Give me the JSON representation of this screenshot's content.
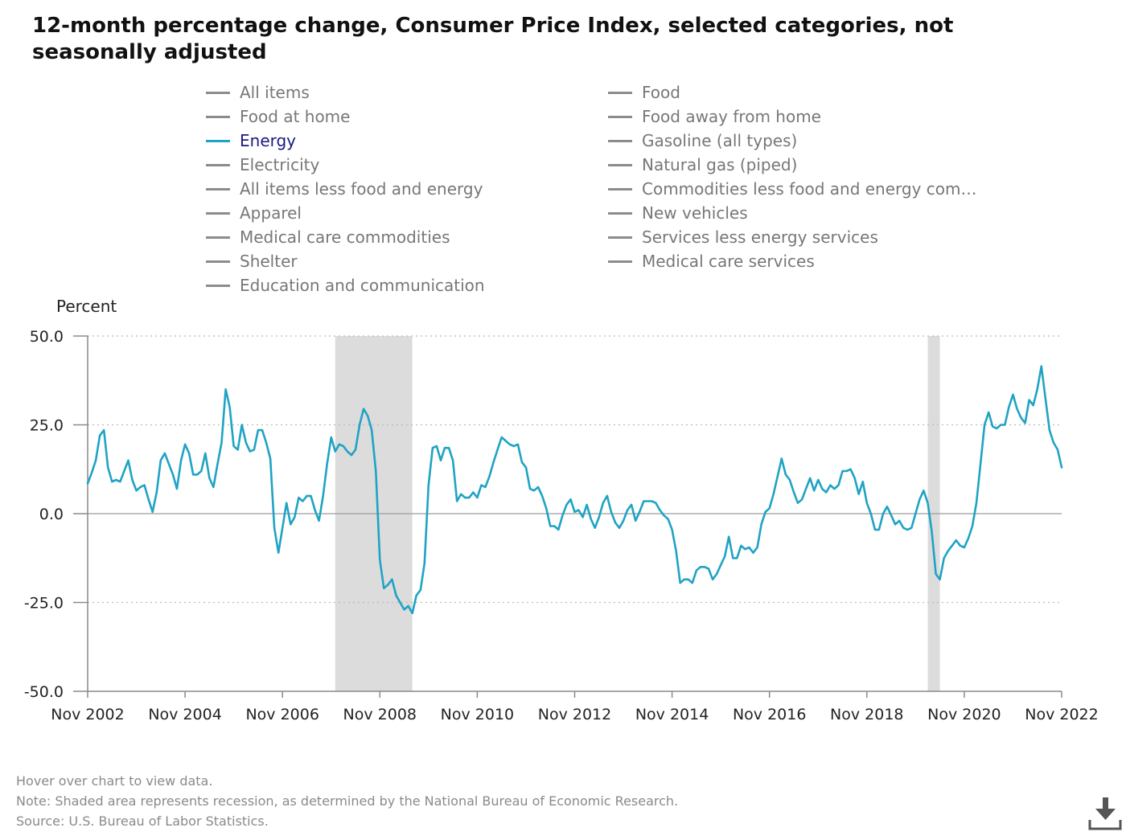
{
  "title": "12-month percentage change, Consumer Price Index, selected categories, not seasonally adjusted",
  "legend": [
    {
      "label": "All items",
      "active": false
    },
    {
      "label": "Food",
      "active": false
    },
    {
      "label": "Food at home",
      "active": false
    },
    {
      "label": "Food away from home",
      "active": false
    },
    {
      "label": "Energy",
      "active": true
    },
    {
      "label": "Gasoline (all types)",
      "active": false
    },
    {
      "label": "Electricity",
      "active": false
    },
    {
      "label": "Natural gas (piped)",
      "active": false
    },
    {
      "label": "All items less food and energy",
      "active": false
    },
    {
      "label": "Commodities less food and energy com…",
      "active": false
    },
    {
      "label": "Apparel",
      "active": false
    },
    {
      "label": "New vehicles",
      "active": false
    },
    {
      "label": "Medical care commodities",
      "active": false
    },
    {
      "label": "Services less energy services",
      "active": false
    },
    {
      "label": "Shelter",
      "active": false
    },
    {
      "label": "Medical care services",
      "active": false
    },
    {
      "label": "Education and communication",
      "active": false
    }
  ],
  "colors": {
    "energy": "#1fa3c4",
    "inactive_legend": "#8c8c8c",
    "recession_shade": "#dcdcdc",
    "grid": "#bbbbbb"
  },
  "chart_data": {
    "type": "line",
    "ylabel": "Percent",
    "ylim": [
      -50,
      50
    ],
    "y_ticks": [
      "50.0",
      "25.0",
      "0.0",
      "-25.0",
      "-50.0"
    ],
    "x_ticks": [
      "Nov 2002",
      "Nov 2004",
      "Nov 2006",
      "Nov 2008",
      "Nov 2010",
      "Nov 2012",
      "Nov 2014",
      "Nov 2016",
      "Nov 2018",
      "Nov 2020",
      "Nov 2022"
    ],
    "x_range": [
      "2002-11",
      "2022-11"
    ],
    "grid": "dotted horizontal",
    "recessions": [
      {
        "start": "2007-12",
        "end": "2009-06"
      },
      {
        "start": "2020-02",
        "end": "2020-04"
      }
    ],
    "series": [
      {
        "name": "Energy",
        "start": "2002-11",
        "frequency": "monthly",
        "values": [
          8.5,
          11.5,
          15.0,
          22.0,
          23.5,
          13.0,
          9.0,
          9.5,
          9.0,
          12.0,
          15.0,
          9.5,
          6.5,
          7.5,
          8.0,
          4.0,
          0.5,
          6.0,
          15.0,
          17.0,
          14.0,
          11.0,
          7.0,
          15.0,
          19.5,
          17.0,
          11.0,
          11.0,
          12.0,
          17.0,
          10.0,
          7.5,
          14.0,
          20.0,
          35.0,
          30.0,
          19.0,
          18.0,
          25.0,
          20.0,
          17.5,
          18.0,
          23.5,
          23.5,
          20.0,
          15.5,
          -4.0,
          -11.0,
          -4.0,
          3.0,
          -3.0,
          -1.0,
          4.5,
          3.5,
          5.0,
          5.0,
          1.0,
          -2.0,
          5.0,
          14.0,
          21.5,
          17.5,
          19.5,
          19.0,
          17.5,
          16.5,
          18.0,
          25.0,
          29.5,
          27.5,
          23.5,
          12.0,
          -13.0,
          -21.0,
          -20.0,
          -18.5,
          -23.0,
          -25.0,
          -27.0,
          -26.0,
          -28.0,
          -23.0,
          -21.5,
          -14.0,
          8.0,
          18.5,
          19.0,
          15.0,
          18.5,
          18.5,
          15.0,
          3.5,
          5.5,
          4.5,
          4.5,
          6.0,
          4.5,
          8.0,
          7.5,
          10.5,
          14.5,
          18.0,
          21.5,
          20.5,
          19.5,
          19.0,
          19.5,
          14.5,
          13.0,
          7.0,
          6.5,
          7.5,
          5.0,
          1.5,
          -3.5,
          -3.5,
          -4.5,
          -0.5,
          2.5,
          4.0,
          0.5,
          1.0,
          -1.0,
          2.5,
          -1.5,
          -4.0,
          -1.0,
          3.0,
          5.0,
          0.5,
          -2.5,
          -4.0,
          -2.0,
          1.0,
          2.5,
          -2.0,
          0.5,
          3.5,
          3.5,
          3.5,
          3.0,
          1.0,
          -0.5,
          -1.5,
          -4.5,
          -10.5,
          -19.5,
          -18.5,
          -18.5,
          -19.5,
          -16.0,
          -15.0,
          -15.0,
          -15.5,
          -18.5,
          -17.0,
          -14.5,
          -12.0,
          -6.5,
          -12.5,
          -12.5,
          -9.0,
          -10.0,
          -9.5,
          -11.0,
          -9.5,
          -3.0,
          0.5,
          1.5,
          5.5,
          10.5,
          15.5,
          11.0,
          9.5,
          6.0,
          3.0,
          4.0,
          7.0,
          10.0,
          6.5,
          9.5,
          7.0,
          6.0,
          8.0,
          7.0,
          8.0,
          12.0,
          12.0,
          12.5,
          10.0,
          5.5,
          9.0,
          3.0,
          0.0,
          -4.5,
          -4.5,
          0.0,
          2.0,
          -0.5,
          -3.0,
          -2.0,
          -4.0,
          -4.5,
          -4.0,
          0.0,
          4.0,
          6.5,
          3.0,
          -5.0,
          -17.0,
          -18.5,
          -12.5,
          -10.5,
          -9.0,
          -7.5,
          -9.0,
          -9.5,
          -7.0,
          -3.5,
          3.0,
          14.0,
          25.0,
          28.5,
          24.5,
          24.0,
          25.0,
          25.0,
          30.0,
          33.5,
          29.5,
          27.0,
          25.5,
          32.0,
          30.5,
          35.0,
          41.5,
          32.5,
          23.5,
          20.0,
          18.0,
          13.0
        ]
      }
    ]
  },
  "footer": {
    "hover_note": "Hover over chart to view data.",
    "note": "Note: Shaded area represents recession, as determined by the National Bureau of Economic Research.",
    "source": "Source: U.S. Bureau of Labor Statistics."
  },
  "download_icon": "download-icon"
}
